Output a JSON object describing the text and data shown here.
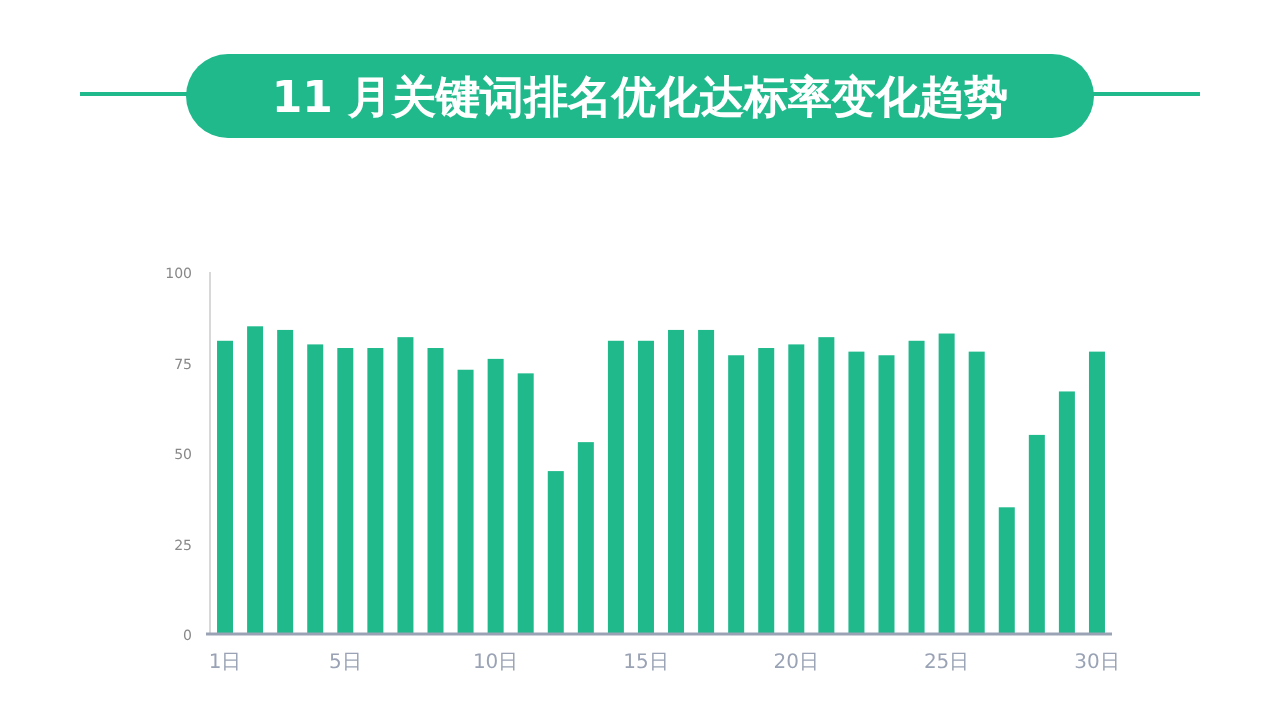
{
  "chart_data": {
    "type": "bar",
    "title": "11 月关键词排名优化达标率变化趋势",
    "categories": [
      "1日",
      null,
      null,
      null,
      "5日",
      null,
      null,
      null,
      null,
      "10日",
      null,
      null,
      null,
      null,
      "15日",
      null,
      null,
      null,
      null,
      "20日",
      null,
      null,
      null,
      null,
      "25日",
      null,
      null,
      null,
      null,
      "30日"
    ],
    "values": [
      81,
      85,
      84,
      80,
      79,
      79,
      82,
      79,
      73,
      76,
      72,
      45,
      53,
      81,
      81,
      84,
      84,
      77,
      79,
      80,
      82,
      78,
      77,
      81,
      83,
      78,
      35,
      55,
      67,
      78
    ],
    "color": "#1fb98b",
    "ylim": [
      0,
      100
    ],
    "yticks": [
      0,
      25,
      50,
      75,
      100
    ],
    "grid": false
  }
}
